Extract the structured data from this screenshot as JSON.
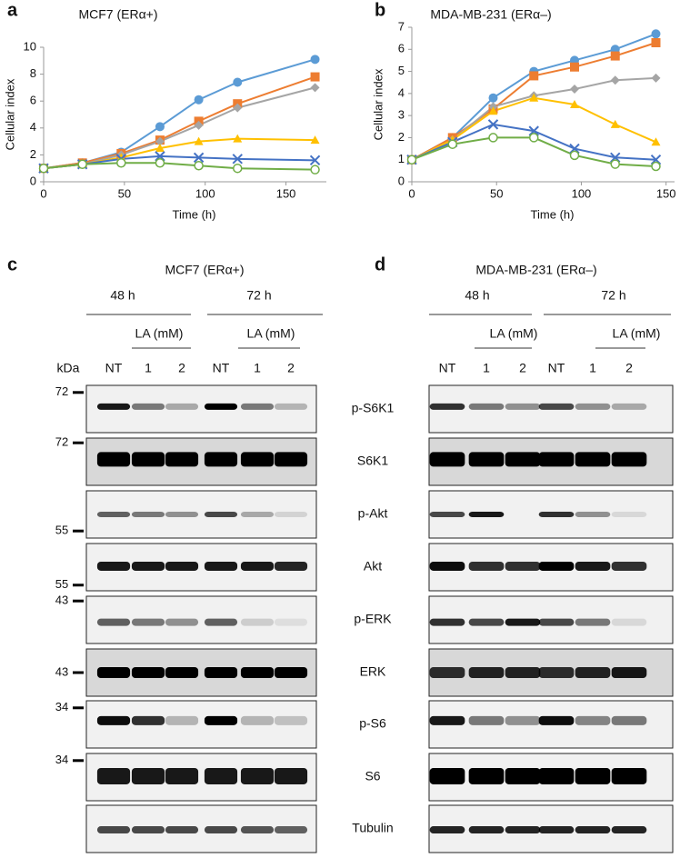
{
  "chart_data": [
    {
      "type": "line",
      "letter": "a",
      "title": "MCF7 (ERα+)",
      "x_label": "Time (h)",
      "y_label": "Cellular index",
      "x": [
        0,
        24,
        48,
        72,
        96,
        120,
        168
      ],
      "xlim": [
        0,
        175
      ],
      "xticks": [
        0,
        50,
        100,
        150
      ],
      "ylim": [
        0,
        10
      ],
      "yticks": [
        0,
        2,
        4,
        6,
        8,
        10
      ],
      "series": [
        {
          "color": "#5b9bd5",
          "marker": "circle",
          "values": [
            1,
            1.4,
            2.2,
            4.1,
            6.1,
            7.4,
            9.1
          ]
        },
        {
          "color": "#ed7d31",
          "marker": "square",
          "values": [
            1,
            1.4,
            2.1,
            3.1,
            4.5,
            5.8,
            7.8
          ]
        },
        {
          "color": "#a5a5a5",
          "marker": "diamond",
          "values": [
            1,
            1.3,
            2.0,
            3.0,
            4.2,
            5.5,
            7.0
          ]
        },
        {
          "color": "#ffc000",
          "marker": "triangle",
          "values": [
            1,
            1.3,
            1.8,
            2.5,
            3.0,
            3.2,
            3.1
          ]
        },
        {
          "color": "#4472c4",
          "marker": "x",
          "values": [
            1,
            1.3,
            1.7,
            1.9,
            1.8,
            1.7,
            1.6
          ]
        },
        {
          "color": "#70ad47",
          "marker": "open-circle",
          "values": [
            1,
            1.3,
            1.4,
            1.4,
            1.2,
            1.0,
            0.9
          ]
        }
      ]
    },
    {
      "type": "line",
      "letter": "b",
      "title": "MDA-MB-231 (ERα–)",
      "x_label": "Time (h)",
      "y_label": "Cellular index",
      "x": [
        0,
        24,
        48,
        72,
        96,
        120,
        144
      ],
      "xlim": [
        0,
        155
      ],
      "xticks": [
        0,
        50,
        100,
        150
      ],
      "ylim": [
        0,
        7
      ],
      "yticks": [
        0,
        1,
        2,
        3,
        4,
        5,
        6,
        7
      ],
      "series": [
        {
          "color": "#5b9bd5",
          "marker": "circle",
          "values": [
            1,
            2.0,
            3.8,
            5.0,
            5.5,
            6.0,
            6.7
          ]
        },
        {
          "color": "#ed7d31",
          "marker": "square",
          "values": [
            1,
            2.0,
            3.3,
            4.8,
            5.2,
            5.7,
            6.3
          ]
        },
        {
          "color": "#a5a5a5",
          "marker": "diamond",
          "values": [
            1,
            1.9,
            3.4,
            3.9,
            4.2,
            4.6,
            4.7
          ]
        },
        {
          "color": "#ffc000",
          "marker": "triangle",
          "values": [
            1,
            1.9,
            3.2,
            3.8,
            3.5,
            2.6,
            1.8
          ]
        },
        {
          "color": "#4472c4",
          "marker": "x",
          "values": [
            1,
            1.8,
            2.6,
            2.3,
            1.5,
            1.1,
            1.0
          ]
        },
        {
          "color": "#70ad47",
          "marker": "open-circle",
          "values": [
            1,
            1.7,
            2.0,
            2.0,
            1.2,
            0.8,
            0.7
          ]
        }
      ]
    }
  ],
  "blots": {
    "rows": [
      "p-S6K1",
      "S6K1",
      "p-Akt",
      "Akt",
      "p-ERK",
      "ERK",
      "p-S6",
      "S6",
      "Tubulin"
    ],
    "panels": [
      {
        "letter": "c",
        "title": "MCF7 (ERα+)",
        "times": [
          "48 h",
          "72 h"
        ],
        "treatment": "LA (mM)",
        "lanes": [
          "NT",
          "1",
          "2",
          "NT",
          "1",
          "2"
        ],
        "kda_header": "kDa",
        "markers": [
          "72",
          "72",
          "55",
          "55",
          "43",
          "43",
          "34",
          "34",
          null
        ]
      },
      {
        "letter": "d",
        "title": "MDA-MB-231 (ERα–)",
        "times": [
          "48 h",
          "72 h"
        ],
        "treatment": "LA (mM)",
        "lanes": [
          "NT",
          "1",
          "2",
          "NT",
          "1",
          "2"
        ]
      }
    ]
  }
}
